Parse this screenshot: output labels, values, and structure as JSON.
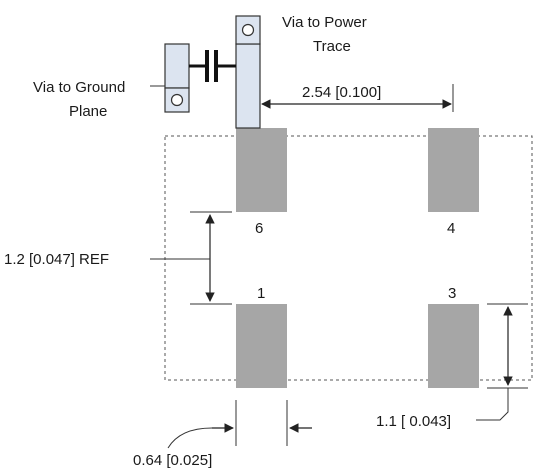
{
  "labels": {
    "via_power_line1": "Via to Power",
    "via_power_line2": "Trace",
    "via_ground_line1": "Via to Ground",
    "via_ground_line2": "Plane",
    "dim_pitch": "2.54 [0.100]",
    "dim_gap": "1.2 [0.047] REF",
    "dim_pad_height": "1.1 [ 0.043]",
    "dim_pad_width": "0.64 [0.025]"
  },
  "pins": {
    "p6": "6",
    "p4": "4",
    "p1": "1",
    "p3": "3"
  },
  "colors": {
    "pad": "#a6a6a6",
    "via_pad": "#dce4f0",
    "outline": "#333333",
    "dashed": "#555555",
    "capacitor": "#111111"
  }
}
